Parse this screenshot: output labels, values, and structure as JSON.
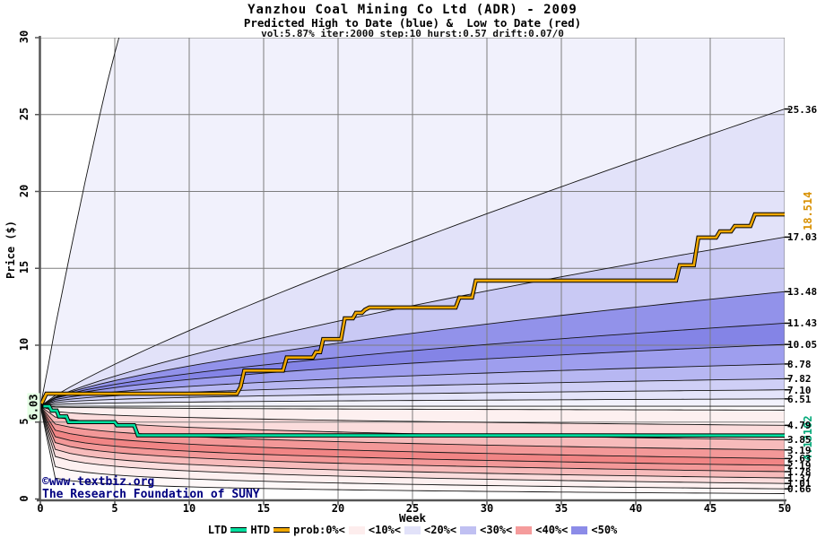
{
  "header": {
    "title": "Yanzhou Coal Mining Co Ltd (ADR) - 2009",
    "subtitle": "Predicted High to Date (blue) &  Low to Date (red)",
    "params": "vol:5.87% iter:2000 step:10 hurst:0.57 drift:0.07/0"
  },
  "watermark": {
    "line1": "©www.textbiz.org",
    "line2": "The Research Foundation of SUNY",
    "color": "#000080"
  },
  "chart_data": {
    "type": "area",
    "title": "Yanzhou Coal Mining Co Ltd (ADR) - 2009",
    "xlabel": "Week",
    "ylabel": "Price ($)",
    "xlim": [
      0,
      50
    ],
    "ylim": [
      0,
      30
    ],
    "x_ticks": [
      0,
      5,
      10,
      15,
      20,
      25,
      30,
      35,
      40,
      45,
      50
    ],
    "y_ticks": [
      0,
      5,
      10,
      15,
      20,
      25,
      30
    ],
    "grid": true,
    "start_price": 6.03,
    "start_label": "6.03",
    "boundaries": [
      {
        "points": [
          [
            0,
            6.03
          ],
          [
            0.5,
            8.5
          ],
          [
            1,
            11.2
          ],
          [
            1.5,
            13.6
          ],
          [
            2,
            16.0
          ],
          [
            2.5,
            18.3
          ],
          [
            3,
            20.6
          ],
          [
            3.5,
            22.8
          ],
          [
            4,
            25.0
          ],
          [
            4.5,
            27.1
          ],
          [
            5,
            29.0
          ],
          [
            5.7,
            31.5
          ]
        ],
        "fill_extend": [
          [
            50,
            31.5
          ]
        ],
        "label": null
      },
      {
        "end": 25.36,
        "exp": 0.85,
        "label": "25.36"
      },
      {
        "end": 17.03,
        "exp": 0.75,
        "label": "17.03"
      },
      {
        "end": 13.48,
        "exp": 0.65,
        "label": "13.48"
      },
      {
        "end": 11.43,
        "exp": 0.58,
        "label": "11.43"
      },
      {
        "end": 10.05,
        "exp": 0.52,
        "label": "10.05"
      },
      {
        "end": 8.78,
        "exp": 0.47,
        "label": "8.78"
      },
      {
        "end": 7.82,
        "exp": 0.42,
        "label": "7.82"
      },
      {
        "end": 7.1,
        "exp": 0.38,
        "label": "7.10"
      },
      {
        "end": 6.51,
        "exp": 0.35,
        "label": "6.51"
      },
      {
        "points": [
          [
            0,
            6.03
          ],
          [
            50,
            6.03
          ]
        ],
        "label": null
      },
      {
        "end": 5.78,
        "exp": 0.38,
        "label": null
      },
      {
        "end": 4.79,
        "exp": 0.33,
        "label": "4.79"
      },
      {
        "end": 3.85,
        "exp": 0.29,
        "label": "3.85"
      },
      {
        "end": 3.19,
        "exp": 0.23,
        "label": "3.19"
      },
      {
        "end": 2.63,
        "exp": 0.2,
        "label": "2.63"
      },
      {
        "end": 2.19,
        "exp": 0.17,
        "label": "2.19"
      },
      {
        "end": 1.78,
        "exp": 0.15,
        "label": "1.78"
      },
      {
        "end": 1.37,
        "exp": 0.13,
        "label": "1.37"
      },
      {
        "end": 1.01,
        "exp": 0.11,
        "label": "1.01"
      },
      {
        "end": 0.66,
        "exp": 0.08,
        "label": "0.66"
      },
      {
        "end": 0.35,
        "exp": 0.05,
        "label": null
      }
    ],
    "band_colors": [
      "#f1f1fc",
      "#e2e2f9",
      "#c9c9f4",
      "#9292ea",
      "#8484e6",
      "#9e9eee",
      "#b7b7f2",
      "#cfcff6",
      "#e4e4fa",
      "#f2f2fc",
      "#fefcfc",
      "#fdf0f0",
      "#fbdcdc",
      "#f7bbbb",
      "#f39898",
      "#f18585",
      "#f39898",
      "#f7bbbb",
      "#fbdcdc",
      "#fdf0f0",
      "#fef8f8"
    ],
    "series": [
      {
        "name": "HTD",
        "color": "#f0a800",
        "final_label": "18.514",
        "points": [
          [
            0,
            6.03
          ],
          [
            0.4,
            6.85
          ],
          [
            13.2,
            6.85
          ],
          [
            13.45,
            7.3
          ],
          [
            13.7,
            8.35
          ],
          [
            16.3,
            8.35
          ],
          [
            16.55,
            9.2
          ],
          [
            18.3,
            9.2
          ],
          [
            18.5,
            9.55
          ],
          [
            18.8,
            9.55
          ],
          [
            19.0,
            10.4
          ],
          [
            20.2,
            10.4
          ],
          [
            20.45,
            11.75
          ],
          [
            21.0,
            11.75
          ],
          [
            21.2,
            12.1
          ],
          [
            21.6,
            12.1
          ],
          [
            21.8,
            12.3
          ],
          [
            22.1,
            12.45
          ],
          [
            27.9,
            12.45
          ],
          [
            28.15,
            13.1
          ],
          [
            29.0,
            13.1
          ],
          [
            29.25,
            14.2
          ],
          [
            42.7,
            14.2
          ],
          [
            42.95,
            15.2
          ],
          [
            43.9,
            15.2
          ],
          [
            44.2,
            17.0
          ],
          [
            45.4,
            17.0
          ],
          [
            45.65,
            17.4
          ],
          [
            46.4,
            17.4
          ],
          [
            46.65,
            17.75
          ],
          [
            47.7,
            17.75
          ],
          [
            48.0,
            18.51
          ],
          [
            50,
            18.51
          ]
        ]
      },
      {
        "name": "LTD",
        "color": "#00e0a0",
        "final_label": "4.13102",
        "points": [
          [
            0,
            6.03
          ],
          [
            0.6,
            6.03
          ],
          [
            0.75,
            5.75
          ],
          [
            1.1,
            5.75
          ],
          [
            1.25,
            5.37
          ],
          [
            1.75,
            5.37
          ],
          [
            1.9,
            5.0
          ],
          [
            5.0,
            5.0
          ],
          [
            5.15,
            4.79
          ],
          [
            6.3,
            4.79
          ],
          [
            6.55,
            4.14
          ],
          [
            50,
            4.131
          ]
        ]
      }
    ],
    "htd_label_color": "#d89000",
    "ltd_label_color": "#00a878",
    "legend_position": "bottom"
  },
  "legend": {
    "ltd_label": "LTD",
    "htd_label": "HTD",
    "prob_label": "prob:0%<",
    "items": [
      {
        "label": "<10%<",
        "color": "#fdeded"
      },
      {
        "label": "<20%<",
        "color": "#e2e2f9"
      },
      {
        "label": "<30%<",
        "color": "#c0c0f2"
      },
      {
        "label": "<40%<",
        "color": "#f59c9c"
      },
      {
        "label": "<50%",
        "color": "#8c8ce8"
      }
    ]
  }
}
